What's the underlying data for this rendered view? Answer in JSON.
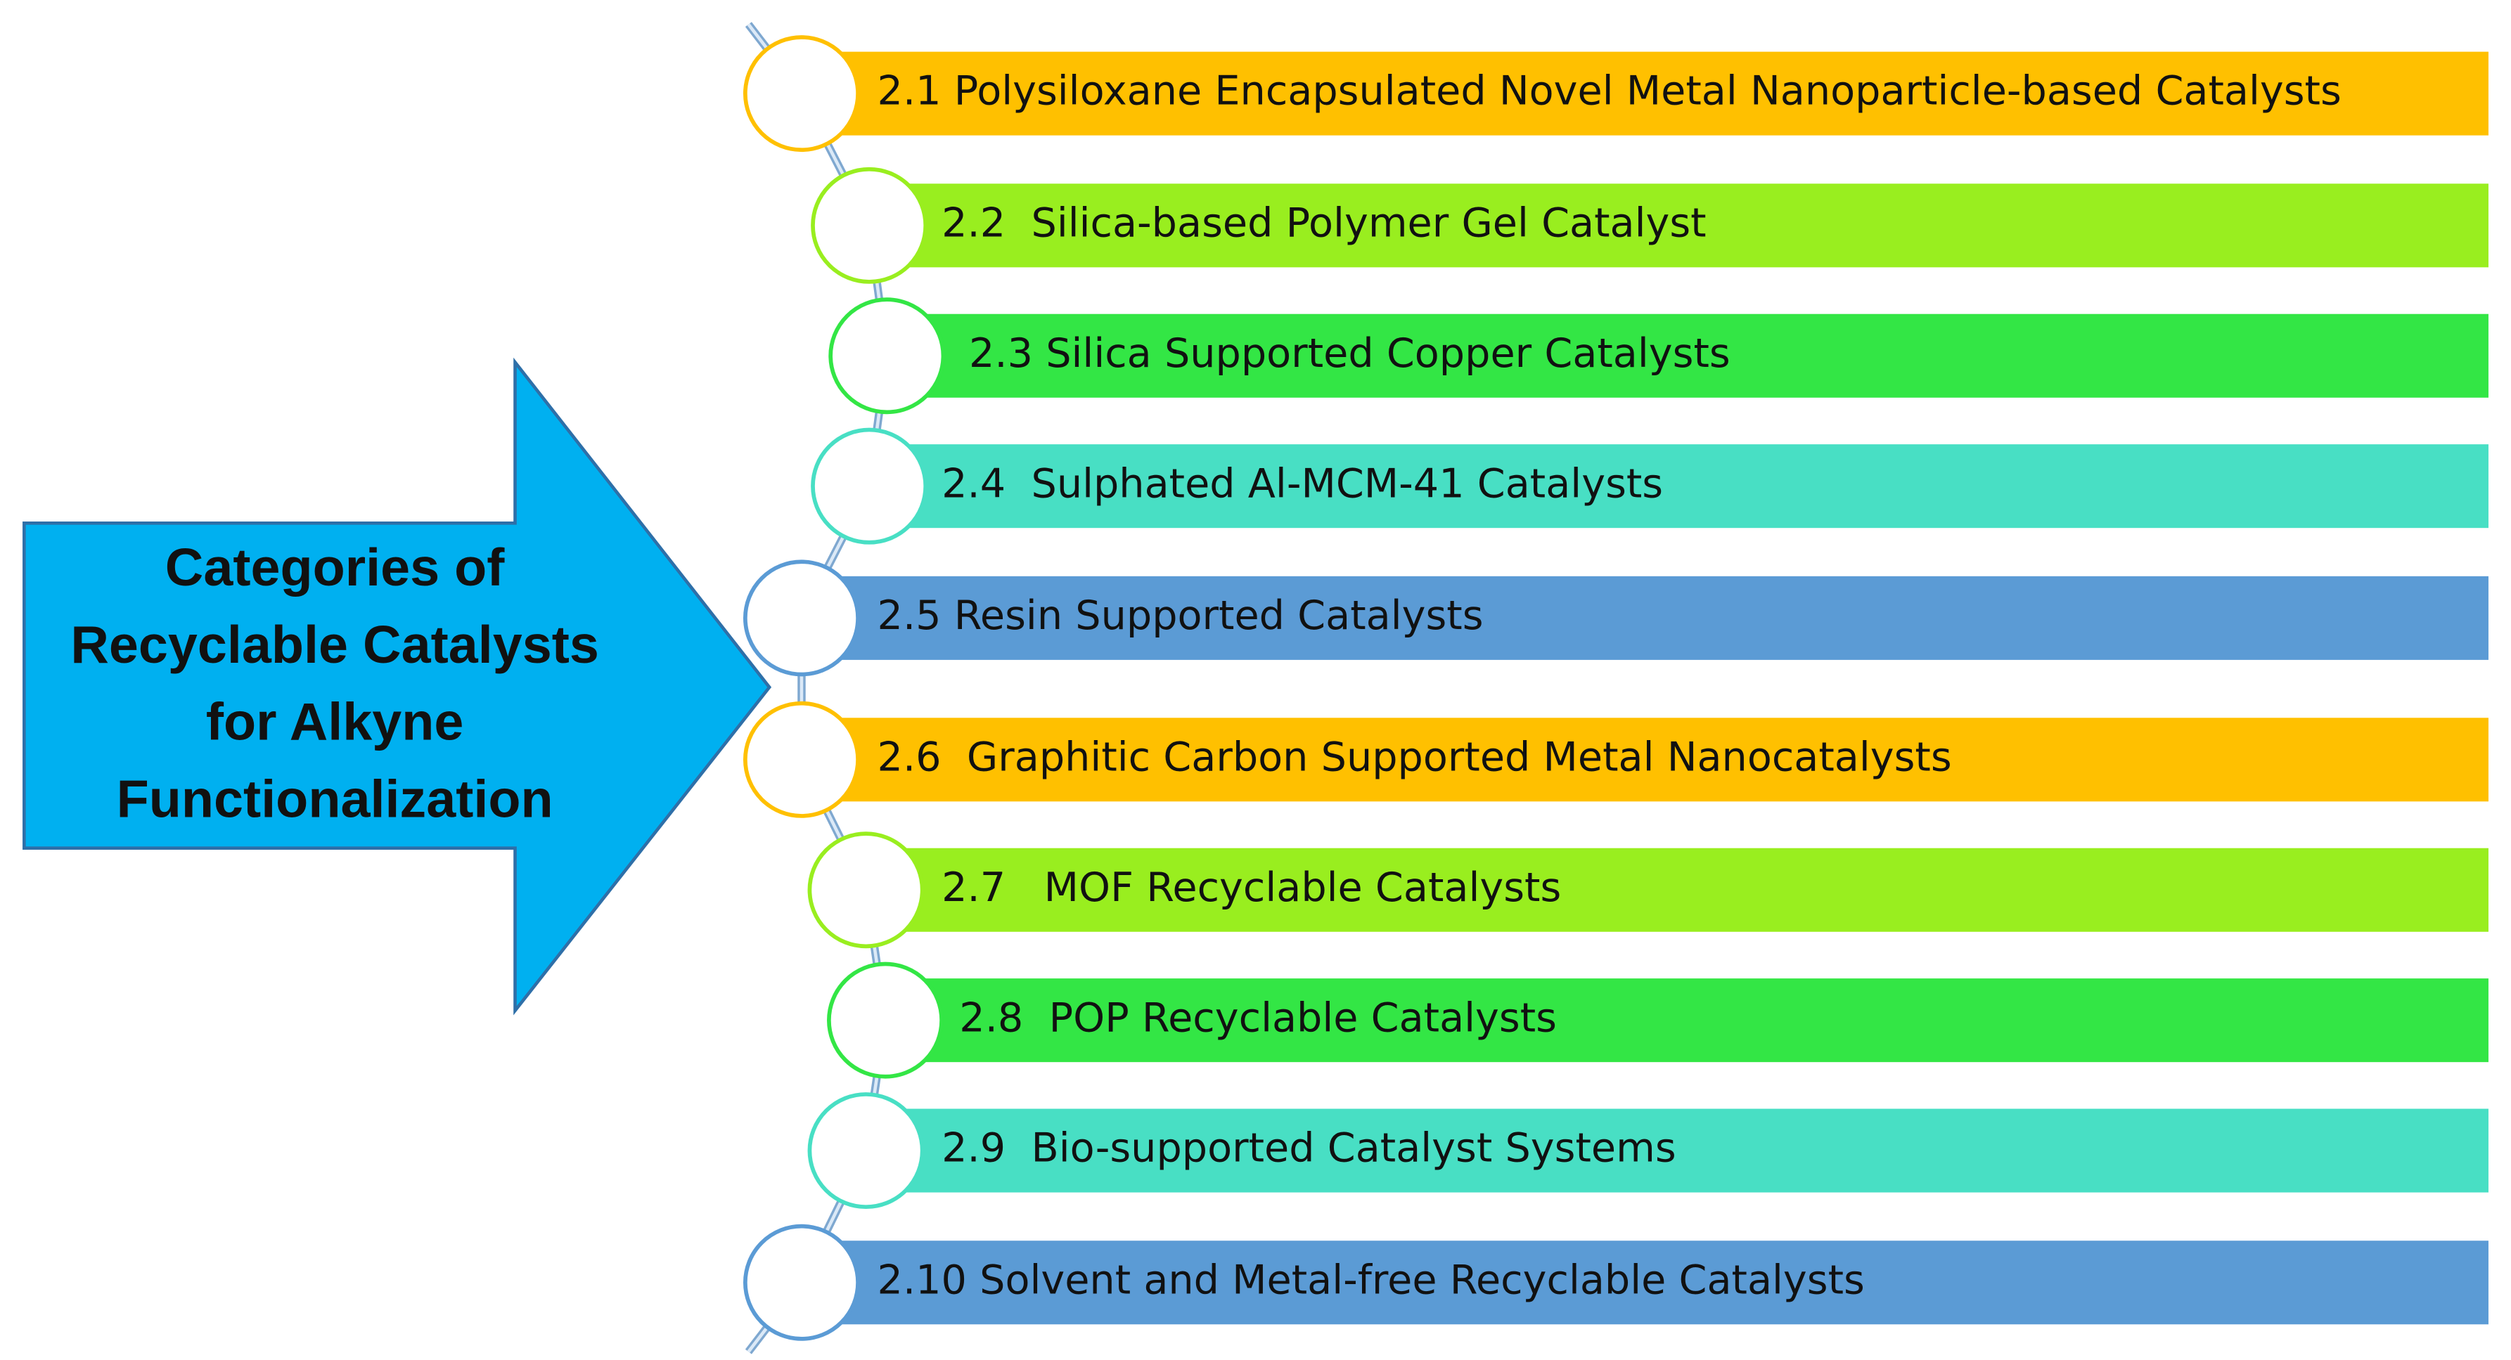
{
  "title": {
    "lines": [
      "Categories of",
      "Recyclable Catalysts",
      "for Alkyne",
      "Functionalization"
    ]
  },
  "items": [
    {
      "label": "2.1 Polysiloxane Encapsulated Novel Metal Nanoparticle-based Catalysts"
    },
    {
      "label": "2.2  Silica-based Polymer Gel Catalyst"
    },
    {
      "label": "2.3 Silica Supported Copper Catalysts"
    },
    {
      "label": "2.4  Sulphated Al-MCM-41 Catalysts"
    },
    {
      "label": "2.5 Resin Supported Catalysts"
    },
    {
      "label": "2.6  Graphitic Carbon Supported Metal Nanocatalysts"
    },
    {
      "label": "2.7   MOF Recyclable Catalysts"
    },
    {
      "label": "2.8  POP Recyclable Catalysts"
    },
    {
      "label": "2.9  Bio-supported Catalyst Systems"
    },
    {
      "label": "2.10 Solvent and Metal-free Recyclable Catalysts"
    }
  ]
}
